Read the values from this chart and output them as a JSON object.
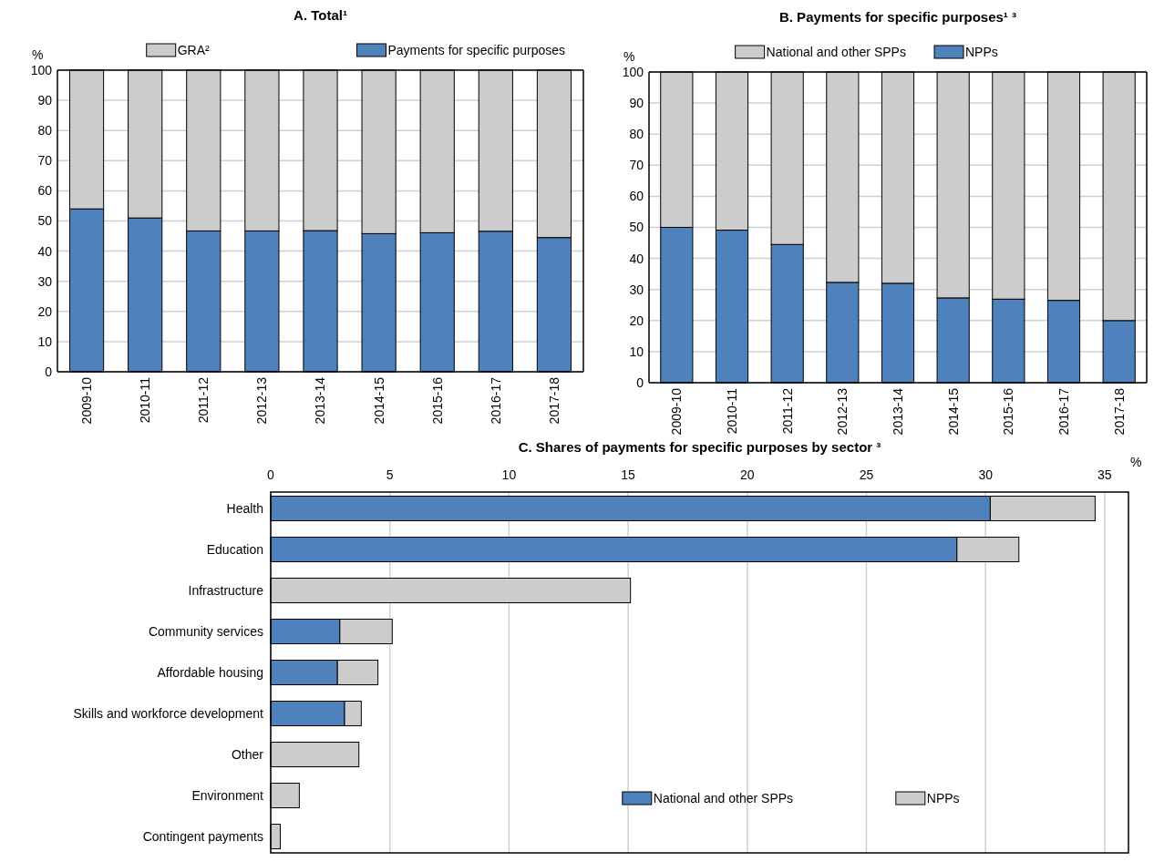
{
  "chart_data": [
    {
      "type": "bar",
      "title": "A. Total¹",
      "ylabel": "%",
      "stacked": true,
      "grid": "y",
      "legend": "top",
      "categories": [
        "2009-10",
        "2010-11",
        "2011-12",
        "2012-13",
        "2013-14",
        "2014-15",
        "2015-16",
        "2016-17",
        "2017-18"
      ],
      "ylim": [
        0,
        100
      ],
      "yticks": [
        0,
        10,
        20,
        30,
        40,
        50,
        60,
        70,
        80,
        90,
        100
      ],
      "series": [
        {
          "name": "Payments for specific purposes",
          "color": "#4f81bd",
          "values": [
            54,
            51,
            46.7,
            46.7,
            46.8,
            45.8,
            46.1,
            46.6,
            44.5
          ]
        },
        {
          "name": "GRA²",
          "color": "#cccccc",
          "values": [
            46,
            49,
            53.3,
            53.3,
            53.2,
            54.2,
            53.9,
            53.4,
            55.5
          ]
        }
      ]
    },
    {
      "type": "bar",
      "title": "B. Payments for specific purposes¹ ³",
      "ylabel": "%",
      "stacked": true,
      "grid": "y",
      "legend": "top",
      "categories": [
        "2009-10",
        "2010-11",
        "2011-12",
        "2012-13",
        "2013-14",
        "2014-15",
        "2015-16",
        "2016-17",
        "2017-18"
      ],
      "ylim": [
        0,
        100
      ],
      "yticks": [
        0,
        10,
        20,
        30,
        40,
        50,
        60,
        70,
        80,
        90,
        100
      ],
      "series": [
        {
          "name": "NPPs",
          "color": "#4f81bd",
          "values": [
            50,
            49.1,
            44.5,
            32.3,
            32,
            27.3,
            26.9,
            26.5,
            20
          ]
        },
        {
          "name": "National and other SPPs",
          "color": "#cccccc",
          "values": [
            50,
            50.9,
            55.5,
            67.7,
            68,
            72.7,
            73.1,
            73.5,
            80
          ]
        }
      ]
    },
    {
      "type": "bar",
      "title": "C. Shares of payments for specific purposes by sector ³",
      "xlabel": "%",
      "stacked": true,
      "orientation": "horizontal",
      "grid": "x",
      "legend": "bottom right",
      "categories": [
        "Health",
        "Education",
        "Infrastructure",
        "Community services",
        "Affordable housing",
        "Skills and workforce development",
        "Other",
        "Environment",
        "Contingent payments"
      ],
      "xlim": [
        0,
        36
      ],
      "xticks": [
        0,
        5,
        10,
        15,
        20,
        25,
        30,
        35
      ],
      "series": [
        {
          "name": "National and other SPPs",
          "color": "#4f81bd",
          "values": [
            30.2,
            28.8,
            0,
            2.9,
            2.8,
            3.1,
            0,
            0,
            0
          ]
        },
        {
          "name": "NPPs",
          "color": "#cccccc",
          "values": [
            4.4,
            2.6,
            15.1,
            2.2,
            1.7,
            0.7,
            3.7,
            1.2,
            0.4
          ]
        }
      ]
    }
  ]
}
